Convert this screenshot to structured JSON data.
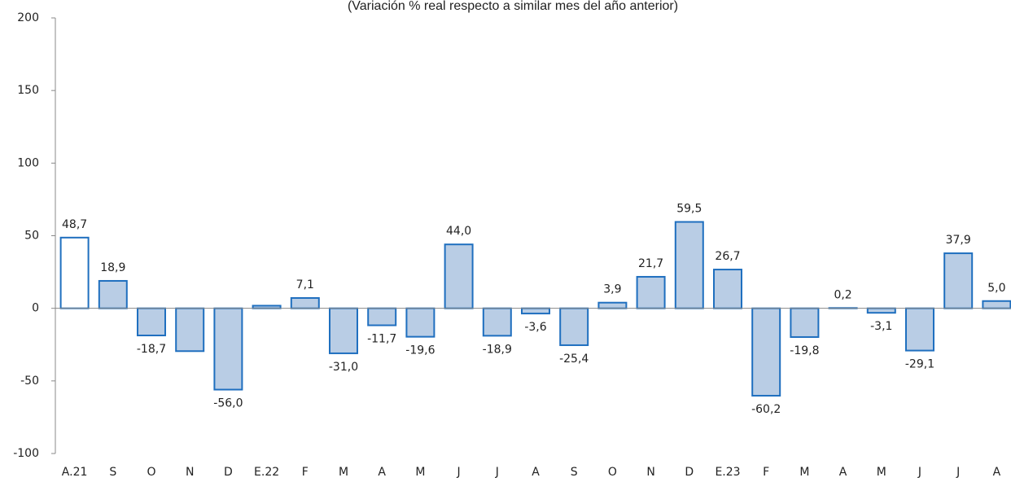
{
  "chart_data": {
    "type": "bar",
    "subtitle": "(Variación % real respecto a similar mes del año anterior)",
    "categories": [
      "A.21",
      "S",
      "O",
      "N",
      "D",
      "E.22",
      "F",
      "M",
      "A",
      "M",
      "J",
      "J",
      "A",
      "S",
      "O",
      "N",
      "D",
      "E.23",
      "F",
      "M",
      "A",
      "M",
      "J",
      "J",
      "A"
    ],
    "values": [
      48.7,
      18.9,
      -18.7,
      -29.5,
      -56.0,
      1.8,
      7.1,
      -31.0,
      -11.7,
      -19.6,
      44.0,
      -18.9,
      -3.6,
      -25.4,
      3.9,
      21.7,
      59.5,
      26.7,
      -60.2,
      -19.8,
      0.2,
      -3.1,
      -29.1,
      37.9,
      5.0
    ],
    "value_labels": [
      "48,7",
      "18,9",
      "-18,7",
      null,
      "-56,0",
      null,
      "7,1",
      "-31,0",
      "-11,7",
      "-19,6",
      "44,0",
      "-18,9",
      "-3,6",
      "-25,4",
      "3,9",
      "21,7",
      "59,5",
      "26,7",
      "-60,2",
      "-19,8",
      "0,2",
      "-3,1",
      "-29,1",
      "37,9",
      "5,0"
    ],
    "colors": [
      "#ffffff",
      "#b9cde5",
      "#b9cde5",
      "#b9cde5",
      "#b9cde5",
      "#b9cde5",
      "#b9cde5",
      "#b9cde5",
      "#b9cde5",
      "#b9cde5",
      "#b9cde5",
      "#b9cde5",
      "#b9cde5",
      "#b9cde5",
      "#b9cde5",
      "#b9cde5",
      "#b9cde5",
      "#b9cde5",
      "#b9cde5",
      "#b9cde5",
      "#b9cde5",
      "#b9cde5",
      "#b9cde5",
      "#b9cde5",
      "#b9cde5"
    ],
    "edge_color": "#1f6fbf",
    "ylim": [
      -100,
      200
    ],
    "yticks": [
      -100,
      -50,
      0,
      50,
      100,
      150,
      200
    ],
    "grid": false
  }
}
